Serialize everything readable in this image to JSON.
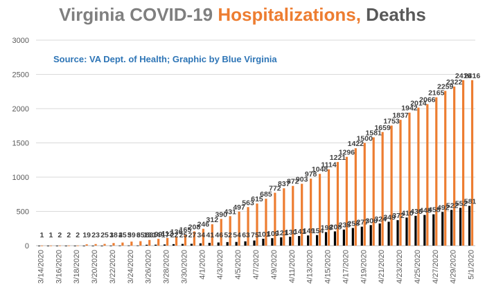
{
  "title": {
    "part1": "Virginia COVID-19 ",
    "part2": "Hospitalizations,",
    "part3": " Deaths"
  },
  "source": "Source: VA Dept. of Health; Graphic by Blue Virginia",
  "colors": {
    "hospitalizations": "#ed7d31",
    "deaths": "#000000",
    "gridline": "#d9d9d9",
    "axis_text": "#595959",
    "data_label": "#404040"
  },
  "chart_data": {
    "type": "bar",
    "categories": [
      "3/14/2020",
      "3/15/2020",
      "3/16/2020",
      "3/17/2020",
      "3/18/2020",
      "3/19/2020",
      "3/20/2020",
      "3/21/2020",
      "3/22/2020",
      "3/23/2020",
      "3/24/2020",
      "3/25/2020",
      "3/26/2020",
      "3/27/2020",
      "3/28/2020",
      "3/29/2020",
      "3/30/2020",
      "3/31/2020",
      "4/1/2020",
      "4/2/2020",
      "4/3/2020",
      "4/4/2020",
      "4/5/2020",
      "4/6/2020",
      "4/7/2020",
      "4/8/2020",
      "4/9/2020",
      "4/10/2020",
      "4/11/2020",
      "4/12/2020",
      "4/13/2020",
      "4/14/2020",
      "4/15/2020",
      "4/16/2020",
      "4/17/2020",
      "4/18/2020",
      "4/19/2020",
      "4/20/2020",
      "4/21/2020",
      "4/22/2020",
      "4/23/2020",
      "4/24/2020",
      "4/25/2020",
      "4/26/2020",
      "4/27/2020",
      "4/28/2020",
      "4/29/2020",
      "4/30/2020",
      "5/1/2020"
    ],
    "tick_labels": [
      "3/14/2020",
      "3/16/2020",
      "3/18/2020",
      "3/20/2020",
      "3/22/2020",
      "3/24/2020",
      "3/26/2020",
      "3/28/2020",
      "3/30/2020",
      "4/1/2020",
      "4/3/2020",
      "4/5/2020",
      "4/7/2020",
      "4/9/2020",
      "4/11/2020",
      "4/13/2020",
      "4/15/2020",
      "4/17/2020",
      "4/19/2020",
      "4/21/2020",
      "4/23/2020",
      "4/25/2020",
      "4/27/2020",
      "4/29/2020",
      "5/1/2020"
    ],
    "series": [
      {
        "key": "hospitalizations",
        "values": [
          1,
          1,
          2,
          2,
          2,
          19,
          23,
          25,
          38,
          45,
          59,
          65,
          83,
          99,
          112,
          136,
          165,
          208,
          246,
          312,
          390,
          431,
          497,
          563,
          615,
          685,
          772,
          837,
          872,
          903,
          978,
          1048,
          1114,
          1221,
          1296,
          1422,
          1500,
          1581,
          1659,
          1753,
          1837,
          1942,
          2014,
          2066,
          2165,
          2259,
          2322,
          2416,
          2416
        ]
      },
      {
        "key": "deaths",
        "values": [
          0,
          0,
          0,
          0,
          0,
          0,
          0,
          0,
          1,
          2,
          3,
          3,
          13,
          14,
          17,
          22,
          25,
          27,
          34,
          41,
          46,
          52,
          54,
          63,
          75,
          101,
          109,
          121,
          130,
          141,
          149,
          154,
          198,
          208,
          235,
          258,
          277,
          300,
          324,
          349,
          372,
          410,
          436,
          448,
          458,
          492,
          522,
          552,
          581
        ]
      }
    ],
    "y_ticks": [
      0,
      500,
      1000,
      1500,
      2000,
      2500,
      3000
    ],
    "ylim": [
      0,
      3000
    ],
    "grid": true,
    "legend": "none"
  }
}
